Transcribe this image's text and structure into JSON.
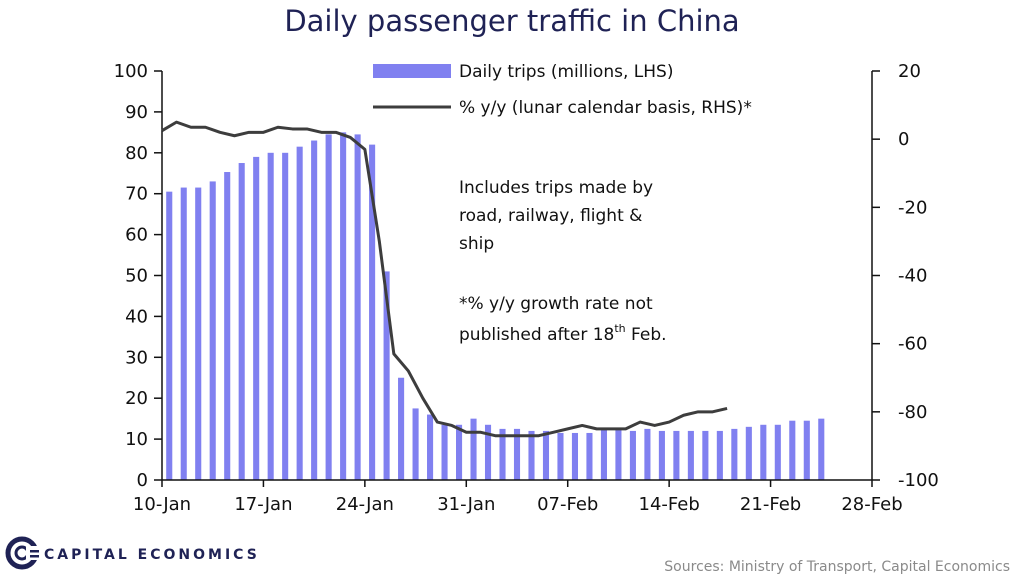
{
  "chart_data": {
    "type": "bar",
    "title": "Daily passenger traffic in China",
    "x_tick_labels": [
      "10-Jan",
      "17-Jan",
      "24-Jan",
      "31-Jan",
      "07-Feb",
      "14-Feb",
      "21-Feb",
      "28-Feb"
    ],
    "y_left_ticks": [
      0,
      10,
      20,
      30,
      40,
      50,
      60,
      70,
      80,
      90,
      100
    ],
    "y_right_ticks": [
      -100,
      -80,
      -60,
      -40,
      -20,
      0,
      20
    ],
    "ylim_left": [
      0,
      100
    ],
    "ylim_right": [
      -100,
      20
    ],
    "x_domain_days": [
      0,
      49
    ],
    "series": [
      {
        "name": "Daily trips (millions, LHS)",
        "type": "bar",
        "axis": "left",
        "color": "#8080f0",
        "x": [
          "10-Jan",
          "11-Jan",
          "12-Jan",
          "13-Jan",
          "14-Jan",
          "15-Jan",
          "16-Jan",
          "17-Jan",
          "18-Jan",
          "19-Jan",
          "20-Jan",
          "21-Jan",
          "22-Jan",
          "23-Jan",
          "24-Jan",
          "25-Jan",
          "26-Jan",
          "27-Jan",
          "28-Jan",
          "29-Jan",
          "30-Jan",
          "31-Jan",
          "01-Feb",
          "02-Feb",
          "03-Feb",
          "04-Feb",
          "05-Feb",
          "06-Feb",
          "07-Feb",
          "08-Feb",
          "09-Feb",
          "10-Feb",
          "11-Feb",
          "12-Feb",
          "13-Feb",
          "14-Feb",
          "15-Feb",
          "16-Feb",
          "17-Feb",
          "18-Feb",
          "19-Feb",
          "20-Feb",
          "21-Feb",
          "22-Feb",
          "23-Feb",
          "24-Feb"
        ],
        "values": [
          70.5,
          71.5,
          71.5,
          73,
          75.3,
          77.5,
          79,
          80,
          80,
          81.5,
          83,
          84.5,
          85,
          84.5,
          82,
          51,
          25,
          17.5,
          16,
          13.5,
          13.5,
          15,
          13.5,
          12.5,
          12.5,
          12,
          12,
          11.5,
          11.5,
          11.5,
          12.5,
          12.5,
          12,
          12.5,
          12,
          12,
          12,
          12,
          12,
          12.5,
          13,
          13.5,
          13.5,
          14.5,
          14.5,
          15
        ]
      },
      {
        "name": "% y/y (lunar calendar basis, RHS)*",
        "type": "line",
        "axis": "right",
        "color": "#3d3d3d",
        "x": [
          "10-Jan",
          "11-Jan",
          "12-Jan",
          "13-Jan",
          "14-Jan",
          "15-Jan",
          "16-Jan",
          "17-Jan",
          "18-Jan",
          "19-Jan",
          "20-Jan",
          "21-Jan",
          "22-Jan",
          "23-Jan",
          "24-Jan",
          "25-Jan",
          "26-Jan",
          "27-Jan",
          "28-Jan",
          "29-Jan",
          "30-Jan",
          "31-Jan",
          "01-Feb",
          "02-Feb",
          "03-Feb",
          "04-Feb",
          "05-Feb",
          "06-Feb",
          "07-Feb",
          "08-Feb",
          "09-Feb",
          "10-Feb",
          "11-Feb",
          "12-Feb",
          "13-Feb",
          "14-Feb",
          "15-Feb",
          "16-Feb",
          "17-Feb",
          "18-Feb"
        ],
        "values": [
          2.5,
          5,
          3.5,
          3.5,
          2,
          1,
          2,
          2,
          3.5,
          3,
          3,
          2,
          2,
          0.5,
          -3,
          -30,
          -63,
          -68,
          -76,
          -83,
          -84,
          -86,
          -86,
          -87,
          -87,
          -87,
          -87,
          -86,
          -85,
          -84,
          -85,
          -85,
          -85,
          -83,
          -84,
          -83,
          -81,
          -80,
          -80,
          -79
        ]
      }
    ],
    "annotations": [
      [
        "Includes  trips made by",
        "road, railway, flight  &",
        "ship"
      ],
      [
        "*% y/y growth  rate not",
        "published  after 18",
        "th",
        "  Feb."
      ]
    ]
  },
  "source": "Sources: Ministry of Transport, Capital Economics",
  "brand": "CAPITAL ECONOMICS",
  "colors": {
    "title": "#1f2255",
    "bar": "#8080f0",
    "line": "#3d3d3d",
    "axis": "#111111",
    "brand": "#1f2255"
  }
}
